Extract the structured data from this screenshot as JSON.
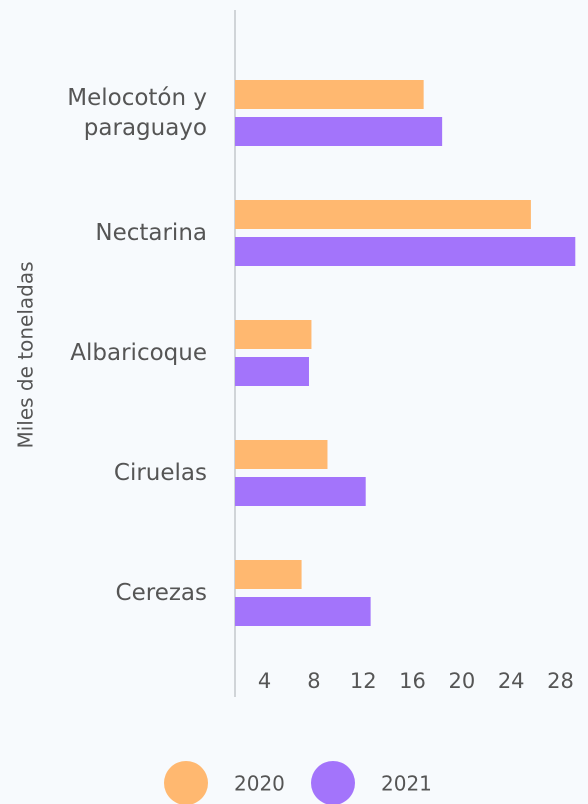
{
  "chart_data": {
    "type": "barh",
    "ylabel": "Miles de toneladas",
    "categories": [
      "Melocotón y paraguayo",
      "Nectarina",
      "Albaricoque",
      "Ciruelas",
      "Cerezas"
    ],
    "series": [
      {
        "name": "2020",
        "color": "#ffb870",
        "values": [
          16.9,
          25.6,
          7.8,
          9.1,
          7.0
        ]
      },
      {
        "name": "2021",
        "color": "#a374fb",
        "values": [
          18.4,
          29.2,
          7.6,
          12.2,
          12.6
        ]
      }
    ],
    "xlim": [
      1.6,
      29.5
    ],
    "xticks": [
      4,
      8,
      12,
      16,
      20,
      24,
      28
    ],
    "grid": false
  }
}
